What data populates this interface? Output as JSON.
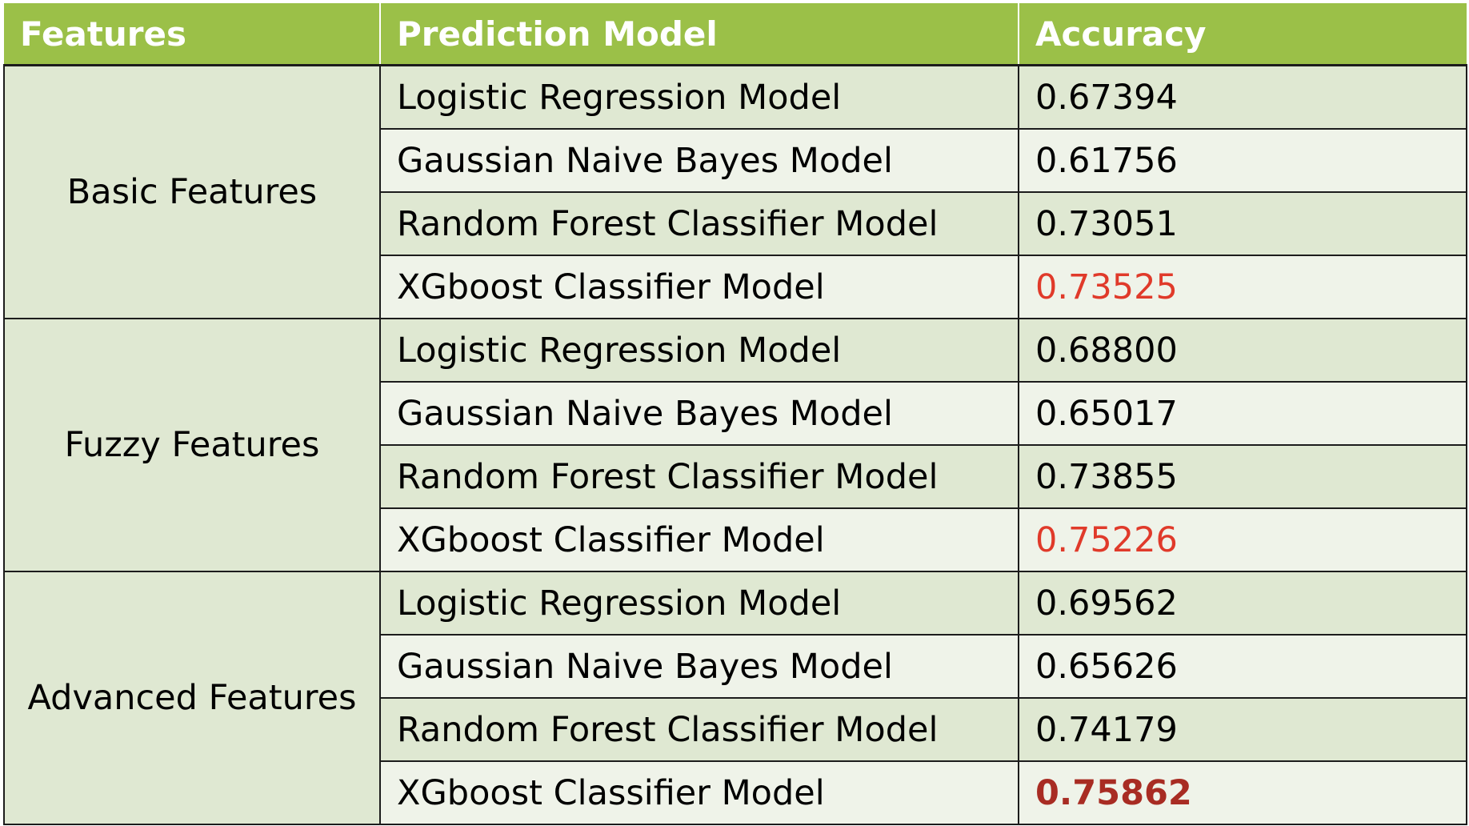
{
  "chart_data": {
    "type": "table",
    "columns": [
      "Features",
      "Prediction Model",
      "Accuracy"
    ],
    "groups": [
      {
        "name": "Basic Features",
        "rows": [
          {
            "model": "Logistic Regression Model",
            "accuracy": "0.67394",
            "emphasis": "none"
          },
          {
            "model": "Gaussian Naive Bayes Model",
            "accuracy": "0.61756",
            "emphasis": "none"
          },
          {
            "model": "Random Forest Classifier Model",
            "accuracy": "0.73051",
            "emphasis": "none"
          },
          {
            "model": "XGboost Classifier Model",
            "accuracy": "0.73525",
            "emphasis": "red"
          }
        ]
      },
      {
        "name": "Fuzzy Features",
        "rows": [
          {
            "model": "Logistic Regression Model",
            "accuracy": "0.68800",
            "emphasis": "none"
          },
          {
            "model": "Gaussian Naive Bayes Model",
            "accuracy": "0.65017",
            "emphasis": "none"
          },
          {
            "model": "Random Forest Classifier Model",
            "accuracy": "0.73855",
            "emphasis": "none"
          },
          {
            "model": "XGboost Classifier Model",
            "accuracy": "0.75226",
            "emphasis": "red"
          }
        ]
      },
      {
        "name": "Advanced Features",
        "rows": [
          {
            "model": "Logistic Regression Model",
            "accuracy": "0.69562",
            "emphasis": "none"
          },
          {
            "model": "Gaussian Naive Bayes Model",
            "accuracy": "0.65626",
            "emphasis": "none"
          },
          {
            "model": "Random Forest Classifier Model",
            "accuracy": "0.74179",
            "emphasis": "none"
          },
          {
            "model": "XGboost Classifier Model",
            "accuracy": "0.75862",
            "emphasis": "bold-red"
          }
        ]
      }
    ]
  },
  "colors": {
    "header_background": "#9bc048",
    "header_text": "#ffffff",
    "row_band_dark": "#dfe8d2",
    "row_band_light": "#eff3e9",
    "grid_line": "#1c1c1c",
    "highlight_red": "#e03a2a",
    "best_red": "#a82c23"
  }
}
